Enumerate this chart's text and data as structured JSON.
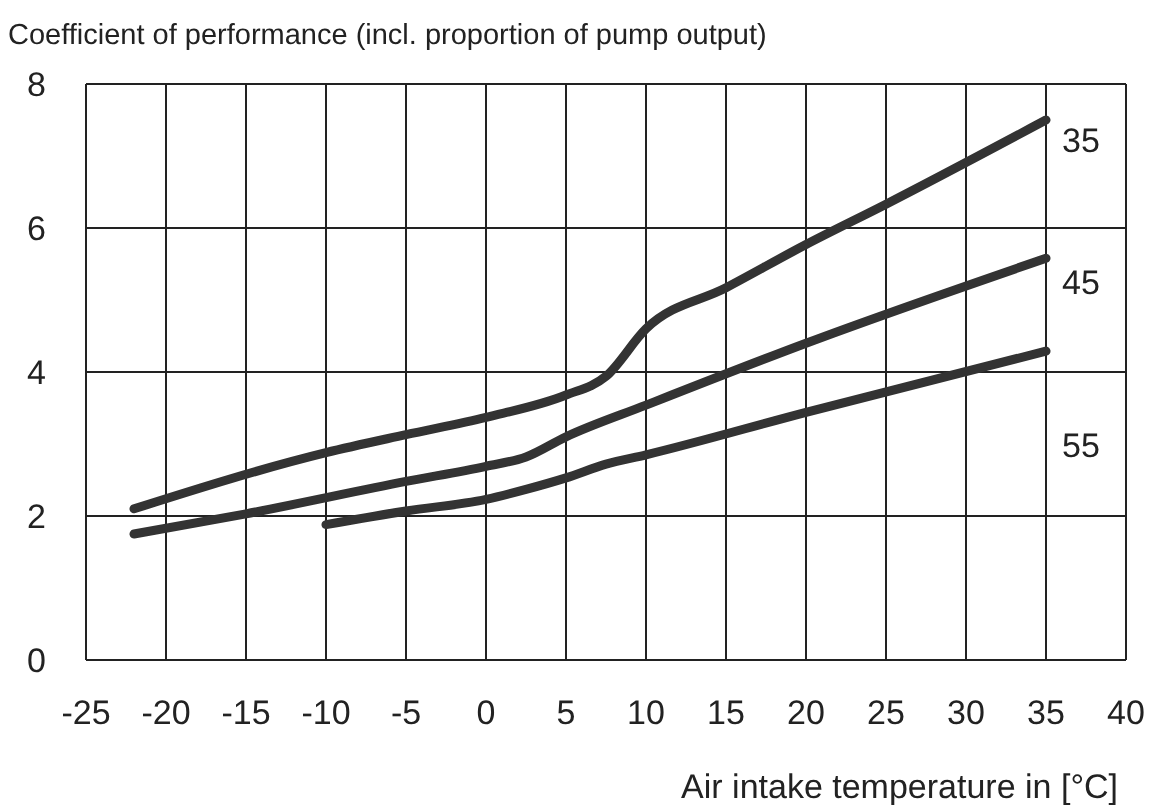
{
  "chart_data": {
    "type": "line",
    "ylabel": "Coefficient of performance (incl. proportion of pump output)",
    "xlabel": "Air intake temperature in [°C]",
    "xlim": [
      -25,
      40
    ],
    "xticks": [
      -25,
      -20,
      -15,
      -10,
      -5,
      0,
      5,
      10,
      15,
      20,
      25,
      30,
      35,
      40
    ],
    "ylim": [
      0,
      8
    ],
    "yticks": [
      0,
      2,
      4,
      6,
      8
    ],
    "grid": true,
    "legend": false,
    "marker": "none",
    "line_style": "solid",
    "series": [
      {
        "name": "35",
        "color": "#333333",
        "x": [
          -22,
          -10,
          -5,
          0,
          5,
          7.5,
          10,
          15,
          20,
          25,
          35
        ],
        "values": [
          2.1,
          2.88,
          3.13,
          3.37,
          3.68,
          3.94,
          4.6,
          5.17,
          5.77,
          6.33,
          7.5
        ]
      },
      {
        "name": "45",
        "color": "#333333",
        "x": [
          -22,
          -15,
          -5,
          0,
          2.5,
          5,
          10,
          20,
          35
        ],
        "values": [
          1.75,
          2.03,
          2.48,
          2.69,
          2.82,
          3.1,
          3.54,
          4.4,
          5.58
        ]
      },
      {
        "name": "55",
        "color": "#333333",
        "x": [
          -10,
          -5,
          0,
          2.5,
          5,
          7.5,
          10,
          20,
          35
        ],
        "values": [
          1.88,
          2.07,
          2.23,
          2.37,
          2.53,
          2.72,
          2.85,
          3.44,
          4.29
        ]
      }
    ]
  }
}
